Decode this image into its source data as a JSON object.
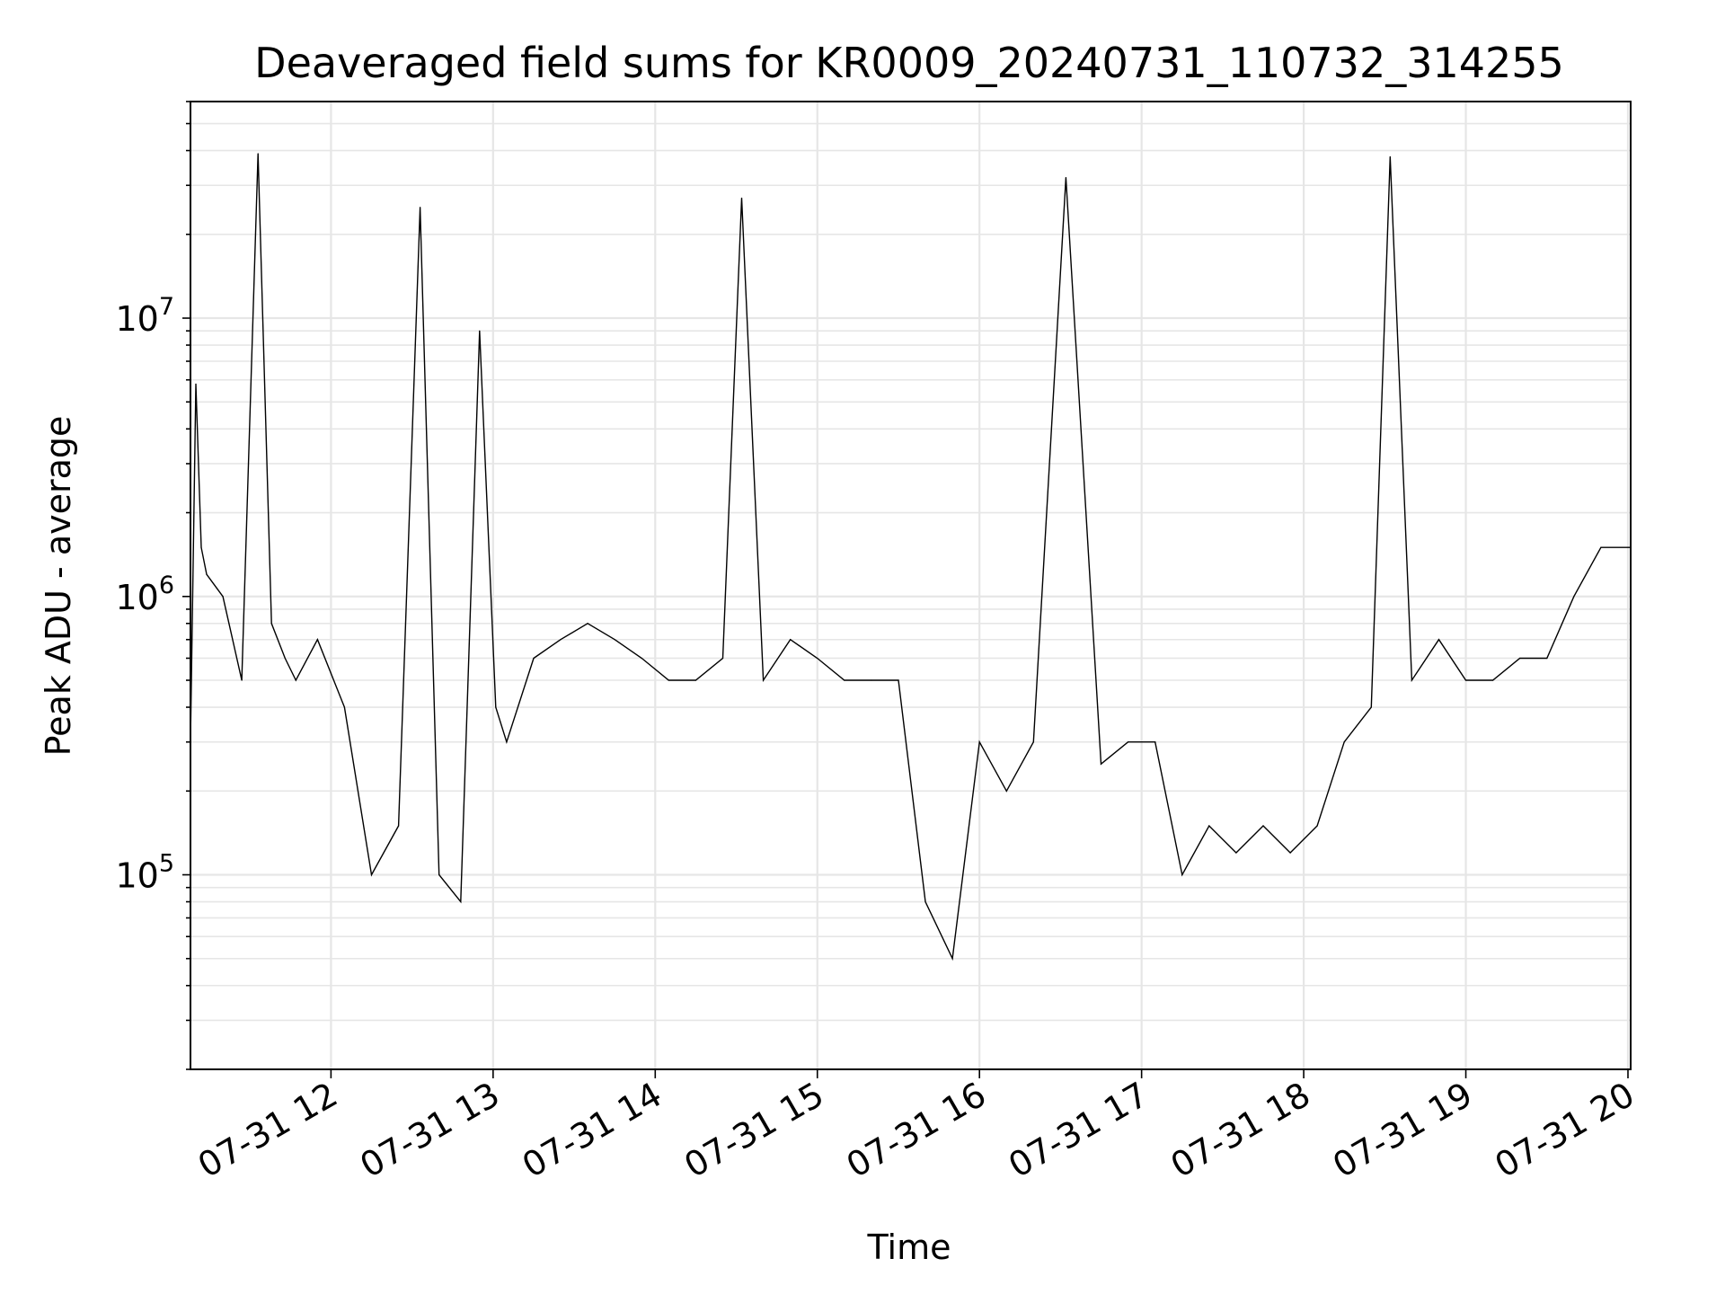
{
  "chart_data": {
    "type": "line",
    "title": "Deaveraged field sums for KR0009_20240731_110732_314255",
    "xlabel": "Time",
    "ylabel": "Peak ADU - average",
    "yscale": "log",
    "ylim": [
      20000,
      60000000
    ],
    "xlim": [
      "2024-07-31 11:08",
      "2024-07-31 20:01"
    ],
    "grid": true,
    "line_color": "#000000",
    "x_ticks": [
      "07-31 12",
      "07-31 13",
      "07-31 14",
      "07-31 15",
      "07-31 16",
      "07-31 17",
      "07-31 18",
      "07-31 19",
      "07-31 20"
    ],
    "y_ticks": [
      {
        "base": "10",
        "exp": "5",
        "value": 100000
      },
      {
        "base": "10",
        "exp": "6",
        "value": 1000000
      },
      {
        "base": "10",
        "exp": "7",
        "value": 10000000
      }
    ],
    "series": [
      {
        "x": [
          "2024-07-31 11:08",
          "2024-07-31 11:10",
          "2024-07-31 11:12",
          "2024-07-31 11:14",
          "2024-07-31 11:20",
          "2024-07-31 11:27",
          "2024-07-31 11:33",
          "2024-07-31 11:38",
          "2024-07-31 11:43",
          "2024-07-31 11:47",
          "2024-07-31 11:55",
          "2024-07-31 12:05",
          "2024-07-31 12:15",
          "2024-07-31 12:25",
          "2024-07-31 12:33",
          "2024-07-31 12:40",
          "2024-07-31 12:48",
          "2024-07-31 12:55",
          "2024-07-31 13:01",
          "2024-07-31 13:05",
          "2024-07-31 13:15",
          "2024-07-31 13:25",
          "2024-07-31 13:35",
          "2024-07-31 13:45",
          "2024-07-31 13:55",
          "2024-07-31 14:05",
          "2024-07-31 14:15",
          "2024-07-31 14:25",
          "2024-07-31 14:32",
          "2024-07-31 14:40",
          "2024-07-31 14:50",
          "2024-07-31 15:00",
          "2024-07-31 15:10",
          "2024-07-31 15:20",
          "2024-07-31 15:30",
          "2024-07-31 15:40",
          "2024-07-31 15:50",
          "2024-07-31 16:00",
          "2024-07-31 16:10",
          "2024-07-31 16:20",
          "2024-07-31 16:32",
          "2024-07-31 16:45",
          "2024-07-31 16:55",
          "2024-07-31 17:05",
          "2024-07-31 17:15",
          "2024-07-31 17:25",
          "2024-07-31 17:35",
          "2024-07-31 17:45",
          "2024-07-31 17:55",
          "2024-07-31 18:05",
          "2024-07-31 18:15",
          "2024-07-31 18:25",
          "2024-07-31 18:32",
          "2024-07-31 18:40",
          "2024-07-31 18:50",
          "2024-07-31 19:00",
          "2024-07-31 19:10",
          "2024-07-31 19:20",
          "2024-07-31 19:30",
          "2024-07-31 19:40",
          "2024-07-31 19:50",
          "2024-07-31 20:01"
        ],
        "y": [
          300000,
          5800000,
          1500000,
          1200000,
          1000000,
          500000,
          39000000,
          800000,
          600000,
          500000,
          700000,
          400000,
          100000,
          150000,
          25000000,
          100000,
          80000,
          9000000,
          400000,
          300000,
          600000,
          700000,
          800000,
          700000,
          600000,
          500000,
          500000,
          600000,
          27000000,
          500000,
          700000,
          600000,
          500000,
          500000,
          500000,
          80000,
          50000,
          300000,
          200000,
          300000,
          32000000,
          250000,
          300000,
          300000,
          100000,
          150000,
          120000,
          150000,
          120000,
          150000,
          300000,
          400000,
          38000000,
          500000,
          700000,
          500000,
          500000,
          600000,
          600000,
          1000000,
          1500000,
          1500000
        ]
      }
    ]
  }
}
